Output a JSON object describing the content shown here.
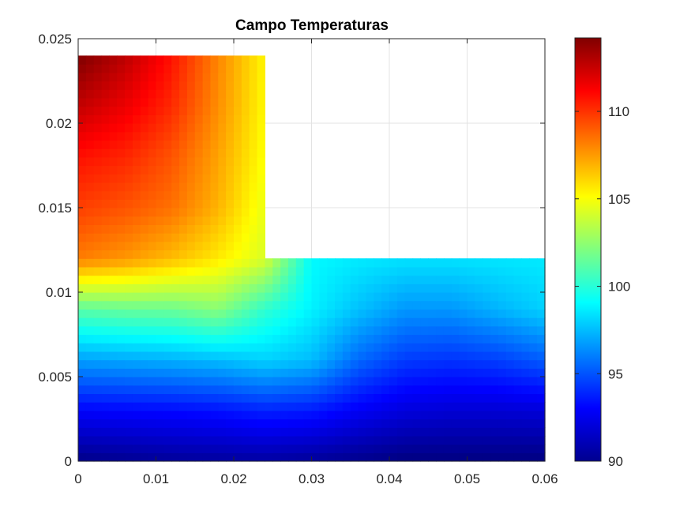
{
  "chart_data": {
    "type": "heatmap",
    "title": "Campo Temperaturas",
    "xlabel": "",
    "ylabel": "",
    "xlim": [
      0,
      0.06
    ],
    "ylim": [
      0,
      0.025
    ],
    "x_ticks": [
      "0",
      "0.01",
      "0.02",
      "0.03",
      "0.04",
      "0.05",
      "0.06"
    ],
    "y_ticks": [
      "0",
      "0.005",
      "0.01",
      "0.015",
      "0.02",
      "0.025"
    ],
    "x_tick_values": [
      0,
      0.01,
      0.02,
      0.03,
      0.04,
      0.05,
      0.06
    ],
    "y_tick_values": [
      0,
      0.005,
      0.01,
      0.015,
      0.02,
      0.025
    ],
    "grid": true,
    "colormap": "jet",
    "colorbar": {
      "range": [
        90,
        114.2
      ],
      "ticks": [
        "90",
        "95",
        "100",
        "105",
        "110"
      ],
      "tick_values": [
        90,
        95,
        100,
        105,
        110
      ]
    },
    "domain_outline": [
      [
        0,
        0
      ],
      [
        0.06,
        0
      ],
      [
        0.06,
        0.012
      ],
      [
        0.024,
        0.012
      ],
      [
        0.024,
        0.024
      ],
      [
        0,
        0.024
      ]
    ],
    "field_samples": {
      "x": [
        0,
        0.006,
        0.012,
        0.018,
        0.024,
        0.03,
        0.036,
        0.042,
        0.048,
        0.054,
        0.06
      ],
      "y": [
        0,
        0.003,
        0.006,
        0.009,
        0.012,
        0.015,
        0.018,
        0.021,
        0.024
      ],
      "t": [
        [
          90.2,
          90.4,
          90.6,
          90.7,
          90.8,
          90.6,
          90.3,
          90.0,
          90.0,
          90.0,
          90.0
        ],
        [
          93.0,
          93.1,
          93.2,
          93.4,
          93.8,
          93.6,
          92.8,
          92.2,
          92.0,
          92.0,
          92.1
        ],
        [
          96.8,
          97.0,
          97.2,
          97.5,
          98.0,
          97.5,
          95.5,
          94.4,
          94.2,
          94.5,
          95.2
        ],
        [
          101.2,
          101.5,
          101.6,
          102.3,
          100.2,
          98.8,
          97.6,
          96.6,
          96.6,
          97.3,
          98.0
        ],
        [
          108.2,
          107.6,
          106.7,
          105.6,
          104.2,
          99.0,
          98.6,
          98.4,
          98.4,
          98.5,
          98.6
        ],
        [
          109.7,
          109.2,
          108.5,
          106.9,
          104.6,
          null,
          null,
          null,
          null,
          null,
          null
        ],
        [
          110.8,
          110.3,
          109.2,
          107.3,
          105.0,
          null,
          null,
          null,
          null,
          null,
          null
        ],
        [
          112.6,
          111.6,
          110.2,
          107.8,
          105.2,
          null,
          null,
          null,
          null,
          null,
          null
        ],
        [
          114.2,
          112.8,
          110.8,
          108.0,
          105.3,
          null,
          null,
          null,
          null,
          null,
          null
        ]
      ]
    }
  }
}
